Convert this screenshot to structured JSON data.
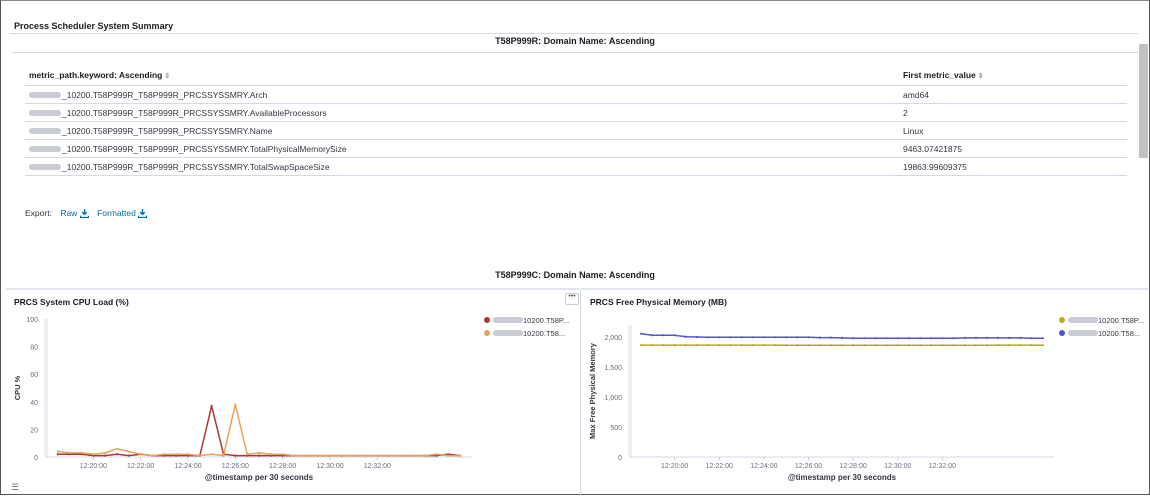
{
  "panel": {
    "title": "Process Scheduler System Summary"
  },
  "table_section": {
    "split_title": "T58P999R: Domain Name: Ascending",
    "columns": [
      "metric_path.keyword: Ascending",
      "First metric_value"
    ],
    "rows": [
      {
        "path": "_10200.T58P999R_T58P999R_PRCSSYSSMRY.Arch",
        "value": "amd64"
      },
      {
        "path": "_10200.T58P999R_T58P999R_PRCSSYSSMRY.AvailableProcessors",
        "value": "2"
      },
      {
        "path": "_10200.T58P999R_T58P999R_PRCSSYSSMRY.Name",
        "value": "Linux"
      },
      {
        "path": "_10200.T58P999R_T58P999R_PRCSSYSSMRY.TotalPhysicalMemorySize",
        "value": "9463.07421875"
      },
      {
        "path": "_10200.T58P999R_T58P999R_PRCSSYSSMRY.TotalSwapSpaceSize",
        "value": "19863.99609375"
      }
    ],
    "export": {
      "label": "Export:",
      "raw": "Raw",
      "formatted": "Formatted"
    }
  },
  "chart_section": {
    "split_title": "T58P999C: Domain Name: Ascending",
    "menu_icon": "ellipsis-icon",
    "legend_toggle_icon": "list-icon"
  },
  "chart_data": [
    {
      "type": "line",
      "title": "PRCS System CPU Load (%)",
      "xlabel": "@timestamp per 30 seconds",
      "ylabel": "CPU %",
      "ylim": [
        0,
        100
      ],
      "yticks": [
        "0",
        "20",
        "40",
        "60",
        "80",
        "100"
      ],
      "xticks": [
        "12:20:00",
        "12:22:00",
        "12:24:00",
        "12:26:00",
        "12:28:00",
        "12:30:00",
        "12:32:00"
      ],
      "x_start": "12:18:30",
      "x_step_seconds": 30,
      "legend_position": "top-right",
      "series": [
        {
          "name": "10200.T58P...",
          "color": "#a83932",
          "values": [
            2,
            2,
            2,
            1,
            1,
            2,
            1,
            2,
            1,
            1,
            1,
            1,
            1,
            37,
            2,
            1,
            1,
            1,
            1,
            1,
            1,
            1,
            1,
            1,
            1,
            1,
            1,
            1,
            1,
            1,
            1,
            1,
            1,
            2,
            1
          ]
        },
        {
          "name": "10200.T58...",
          "color": "#e7a25e",
          "values": [
            4,
            3,
            3,
            2,
            3,
            6,
            4,
            2,
            1,
            2,
            2,
            2,
            1,
            2,
            1,
            38,
            2,
            3,
            2,
            2,
            1,
            1,
            1,
            1,
            1,
            1,
            1,
            1,
            1,
            1,
            1,
            1,
            2,
            1,
            1
          ]
        }
      ]
    },
    {
      "type": "line",
      "title": "PRCS Free Physical Memory (MB)",
      "xlabel": "@timestamp per 30 seconds",
      "ylabel": "Max Free Physical Memory",
      "ylim": [
        0,
        2200
      ],
      "yticks": [
        "0",
        "500",
        "1,000",
        "1,500",
        "2,000"
      ],
      "xticks": [
        "12:20:00",
        "12:22:00",
        "12:24:00",
        "12:26:00",
        "12:28:00",
        "12:30:00",
        "12:32:00"
      ],
      "x_start": "12:18:30",
      "x_step_seconds": 30,
      "legend_position": "top-right",
      "series": [
        {
          "name": "10200.T58P...",
          "color": "#b9a72a",
          "values": [
            1865,
            1865,
            1865,
            1865,
            1865,
            1865,
            1865,
            1865,
            1865,
            1865,
            1865,
            1865,
            1865,
            1862,
            1862,
            1862,
            1862,
            1862,
            1862,
            1862,
            1862,
            1862,
            1862,
            1862,
            1862,
            1862,
            1862,
            1862,
            1862,
            1862,
            1862,
            1862,
            1865,
            1865,
            1865,
            1865,
            1862
          ]
        },
        {
          "name": "10200.T58...",
          "color": "#4f56d2",
          "values": [
            2055,
            2030,
            2030,
            2030,
            2005,
            2000,
            1995,
            1995,
            1995,
            1995,
            1995,
            1995,
            1995,
            1995,
            1995,
            1995,
            1990,
            1990,
            1985,
            1980,
            1980,
            1980,
            1980,
            1980,
            1980,
            1980,
            1980,
            1980,
            1980,
            1985,
            1985,
            1985,
            1985,
            1985,
            1985,
            1980,
            1980
          ]
        }
      ]
    }
  ]
}
